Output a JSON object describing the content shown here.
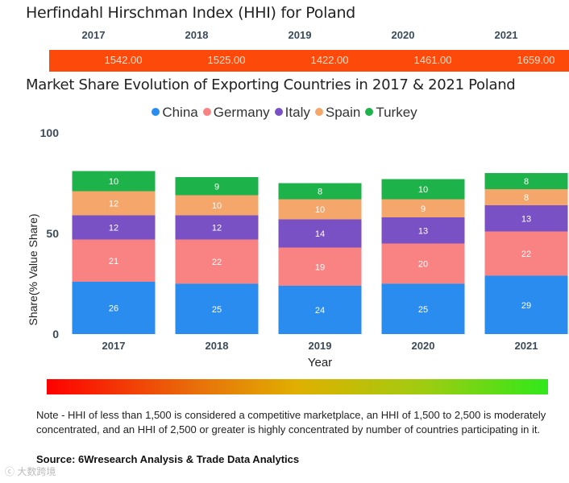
{
  "hhi": {
    "title": "Herfindahl Hirschman Index (HHI) for Poland",
    "years": [
      "2017",
      "2018",
      "2019",
      "2020",
      "2021"
    ],
    "values": [
      "1542.00",
      "1525.00",
      "1422.00",
      "1461.00",
      "1659.00"
    ],
    "bar_color": "#fd4a0a"
  },
  "chart_data": {
    "type": "bar",
    "stacked": true,
    "title": "Market Share Evolution of Exporting Countries in 2017 & 2021 Poland",
    "xlabel": "Year",
    "ylabel": "Share(% Value Share)",
    "ylim": [
      0,
      100
    ],
    "yticks": [
      "0",
      "50",
      "100"
    ],
    "legend_position": "top-center",
    "categories": [
      "2017",
      "2018",
      "2019",
      "2020",
      "2021"
    ],
    "series": [
      {
        "name": "China",
        "color": "#2b8cf0",
        "values": [
          26,
          25,
          24,
          25,
          29
        ]
      },
      {
        "name": "Germany",
        "color": "#f98383",
        "values": [
          21,
          22,
          19,
          20,
          22
        ]
      },
      {
        "name": "Italy",
        "color": "#7951c4",
        "values": [
          12,
          12,
          14,
          13,
          13
        ]
      },
      {
        "name": "Spain",
        "color": "#f5a66a",
        "values": [
          12,
          10,
          10,
          9,
          8
        ]
      },
      {
        "name": "Turkey",
        "color": "#1eb34a",
        "values": [
          10,
          9,
          8,
          10,
          8
        ]
      }
    ]
  },
  "note": "Note - HHI of less than 1,500 is considered a competitive marketplace, an HHI of 1,500 to 2,500 is moderately concentrated, and an HHI of 2,500 or greater is highly concentrated by number of countries participating in it.",
  "source": "Source: 6Wresearch Analysis & Trade Data Analytics",
  "watermark": "大数跨境"
}
